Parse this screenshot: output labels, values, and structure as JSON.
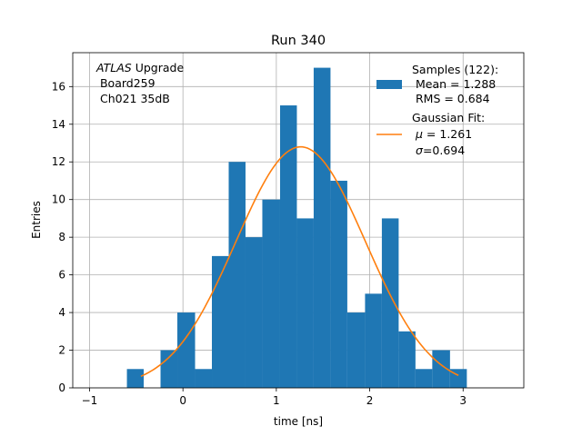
{
  "chart_data": {
    "type": "bar",
    "title": "Run 340",
    "xlabel": "time [ns]",
    "ylabel": "Entries",
    "xlim": [
      -1.18,
      3.65
    ],
    "ylim": [
      0,
      17.8
    ],
    "grid": true,
    "legend_position": "top-right",
    "x_ticks": [
      -1,
      0,
      1,
      2,
      3
    ],
    "y_ticks": [
      0,
      2,
      4,
      6,
      8,
      10,
      12,
      14,
      16
    ],
    "histogram": {
      "bin_edges": [
        -0.6,
        -0.42,
        -0.24,
        -0.06,
        0.13,
        0.31,
        0.49,
        0.67,
        0.85,
        1.04,
        1.22,
        1.4,
        1.58,
        1.76,
        1.95,
        2.13,
        2.31,
        2.49,
        2.67,
        2.86,
        3.04
      ],
      "counts": [
        1,
        0,
        2,
        4,
        1,
        7,
        12,
        8,
        10,
        15,
        9,
        17,
        11,
        4,
        5,
        9,
        3,
        1,
        2,
        1
      ],
      "color": "#1f77b4"
    },
    "fit": {
      "name": "Gaussian Fit",
      "amplitude": 12.8,
      "mu": 1.261,
      "sigma": 0.694,
      "x_range": [
        -0.45,
        2.95
      ],
      "color": "#ff7f0e"
    },
    "annotation": {
      "line1_italic": "ATLAS",
      "line1_rest": " Upgrade",
      "line2": " Board259",
      "line3": " Ch021 35dB"
    },
    "legend": {
      "samples": {
        "line1": "Samples (122):",
        "line2": " Mean = 1.288",
        "line3": " RMS = 0.684"
      },
      "fit": {
        "line1": "Gaussian Fit:",
        "line2_symbol": "μ",
        "line2_value": " = 1.261",
        "line3_symbol": "σ",
        "line3_value": "=0.694"
      }
    }
  }
}
